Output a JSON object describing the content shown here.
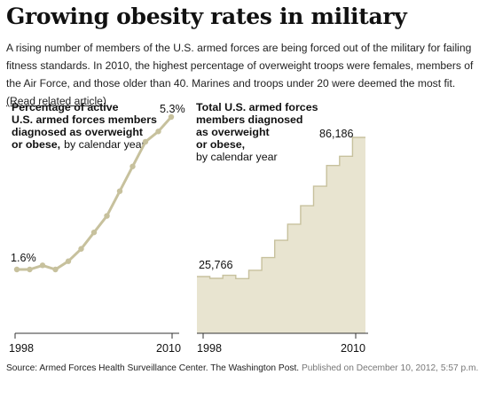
{
  "header": {
    "title": "Growing obesity rates in military",
    "intro": "A rising number of members of the U.S. armed forces are being forced out of the military for failing fitness standards. In 2010, the highest percentage of overweight troops were females, members of the Air Force, and those older than 40. Marines and troops under 20 were deemed the most fit.",
    "link_label": "(Read related article)"
  },
  "colors": {
    "line": "#c7c19d",
    "area_fill": "#e8e4d0",
    "area_stroke": "#c7c19d",
    "text": "#111111"
  },
  "chart_data": [
    {
      "type": "line",
      "title_bold": [
        "Percentage of active",
        "U.S. armed forces members",
        "diagnosed as overweight"
      ],
      "title_bold_last": "or obese,",
      "title_regular": "by calendar year",
      "start_label": "1.6%",
      "end_label": "5.3%",
      "x_tick_labels": [
        "1998",
        "2010"
      ],
      "x": [
        1998,
        1999,
        2000,
        2001,
        2002,
        2003,
        2004,
        2005,
        2006,
        2007,
        2008,
        2009,
        2010
      ],
      "values": [
        1.6,
        1.6,
        1.7,
        1.6,
        1.8,
        2.1,
        2.5,
        2.9,
        3.5,
        4.1,
        4.7,
        4.95,
        5.3
      ],
      "ylim": [
        0,
        6
      ],
      "grid": false
    },
    {
      "type": "area",
      "title_bold": [
        "Total U.S. armed forces",
        "members diagnosed",
        "as overweight",
        "or obese,"
      ],
      "title_regular": "by calendar year",
      "start_label": "25,766",
      "end_label": "86,186",
      "x_tick_labels": [
        "1998",
        "2010"
      ],
      "x": [
        1998,
        1999,
        2000,
        2001,
        2002,
        2003,
        2004,
        2005,
        2006,
        2007,
        2008,
        2009,
        2010
      ],
      "values": [
        25766,
        25000,
        26300,
        24900,
        28500,
        34000,
        41500,
        48500,
        56500,
        65000,
        74000,
        78000,
        86186
      ],
      "ylim": [
        0,
        95000
      ],
      "step": true,
      "grid": false
    }
  ],
  "footer": {
    "source": "Source: Armed Forces Health Surveillance Center. The Washington Post.",
    "published": "Published on December 10, 2012, 5:57 p.m."
  }
}
